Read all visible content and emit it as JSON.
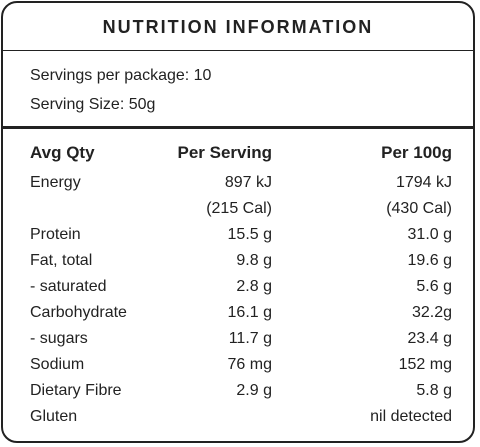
{
  "title": "NUTRITION INFORMATION",
  "servings_per_package": "Servings per package: 10",
  "serving_size": "Serving Size: 50g",
  "headers": {
    "qty": "Avg Qty",
    "per_serving": "Per Serving",
    "per_100g": "Per 100g"
  },
  "rows": [
    {
      "label": "Energy",
      "per_serving": "897 kJ",
      "per_100g": "1794 kJ"
    },
    {
      "label": "",
      "per_serving": "(215 Cal)",
      "per_100g": "(430 Cal)"
    },
    {
      "label": "Protein",
      "per_serving": "15.5 g",
      "per_100g": "31.0 g"
    },
    {
      "label": "Fat, total",
      "per_serving": "9.8 g",
      "per_100g": "19.6 g"
    },
    {
      "label": "- saturated",
      "per_serving": "2.8 g",
      "per_100g": "5.6 g"
    },
    {
      "label": "Carbohydrate",
      "per_serving": "16.1 g",
      "per_100g": "32.2g"
    },
    {
      "label": "- sugars",
      "per_serving": "11.7 g",
      "per_100g": "23.4 g"
    },
    {
      "label": "Sodium",
      "per_serving": "76 mg",
      "per_100g": "152 mg"
    },
    {
      "label": "Dietary Fibre",
      "per_serving": "2.9 g",
      "per_100g": "5.8 g"
    },
    {
      "label": "Gluten",
      "per_serving": "",
      "per_100g": "nil detected"
    }
  ]
}
